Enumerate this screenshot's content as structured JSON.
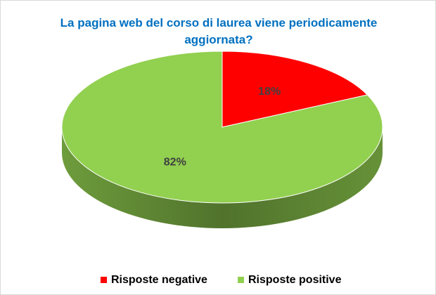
{
  "chart_data": {
    "type": "pie",
    "title": "La pagina web del corso di laurea viene periodicamente aggiornata?",
    "categories": [
      "Risposte negative",
      "Risposte positive"
    ],
    "values": [
      18,
      82
    ],
    "value_labels": [
      "18%",
      "82%"
    ],
    "colors": [
      "#ff0000",
      "#92d050"
    ],
    "legend": "bottom"
  }
}
